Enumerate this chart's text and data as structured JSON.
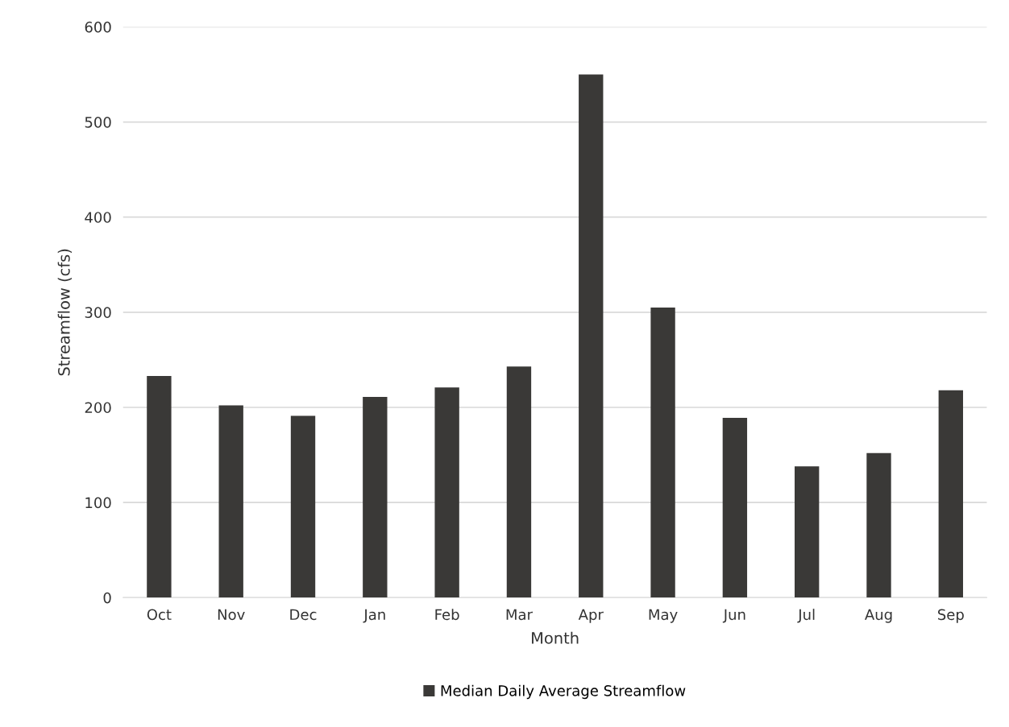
{
  "chart_data": {
    "type": "bar",
    "xlabel": "Month",
    "ylabel": "Streamflow (cfs)",
    "categories": [
      "Oct",
      "Nov",
      "Dec",
      "Jan",
      "Feb",
      "Mar",
      "Apr",
      "May",
      "Jun",
      "Jul",
      "Aug",
      "Sep"
    ],
    "series": [
      {
        "name": "Median Daily Average Streamflow",
        "color": "#3a3937",
        "values": [
          233,
          202,
          191,
          211,
          221,
          243,
          550,
          305,
          189,
          138,
          152,
          218
        ]
      }
    ],
    "ylim": [
      0,
      600
    ],
    "yticks": [
      0,
      100,
      200,
      300,
      400,
      500,
      600
    ],
    "grid": "y",
    "legend": "bottom"
  }
}
